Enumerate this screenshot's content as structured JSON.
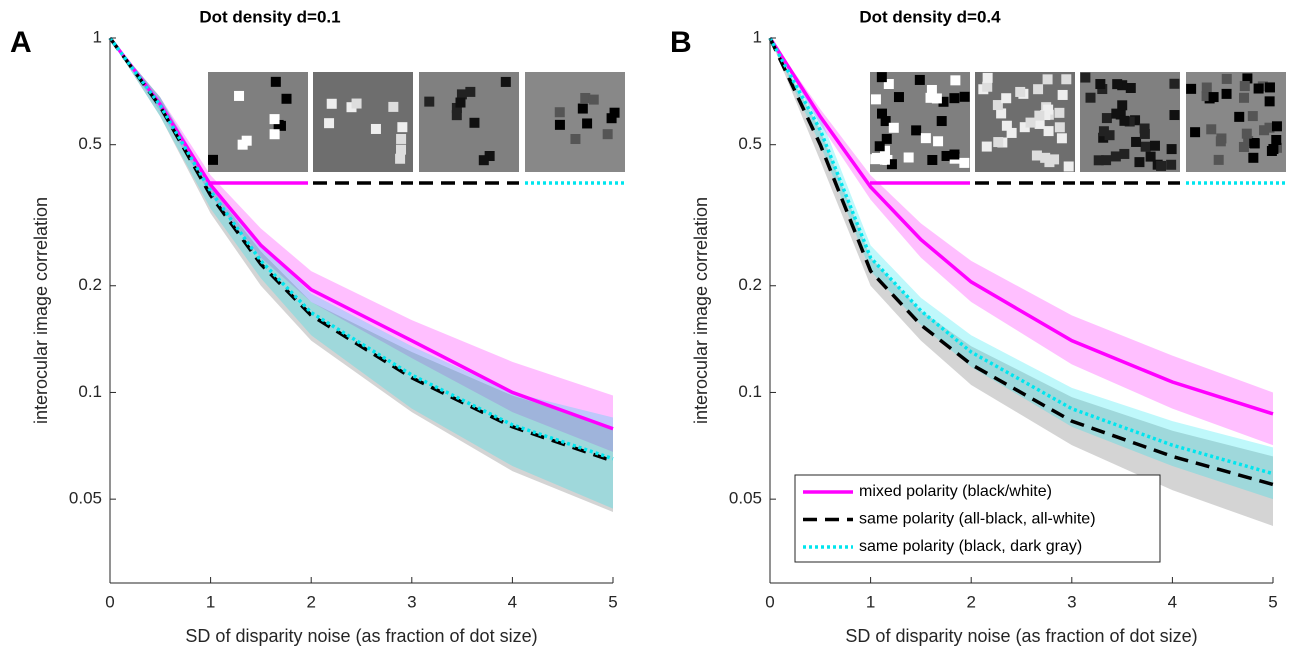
{
  "chart_data": [
    {
      "type": "line",
      "panel_label": "A",
      "title": "Dot density d=0.1",
      "x_label": "SD of disparity noise (as fraction of dot size)",
      "y_label": "interocular image correlation",
      "y_scale": "log",
      "xlim": [
        0,
        5
      ],
      "ylim": [
        0.029,
        1
      ],
      "xticks": [
        0,
        1,
        2,
        3,
        4,
        5
      ],
      "yticks": [
        0.05,
        0.1,
        0.2,
        0.5,
        1
      ],
      "x": [
        0,
        0.5,
        1,
        1.5,
        2,
        3,
        4,
        5
      ],
      "series": [
        {
          "color": "#ff00ff",
          "style": "solid",
          "values": [
            1,
            0.65,
            0.385,
            0.26,
            0.195,
            0.14,
            0.1,
            0.079
          ],
          "band_lower": [
            1,
            0.62,
            0.36,
            0.24,
            0.18,
            0.125,
            0.088,
            0.068
          ],
          "band_upper": [
            1,
            0.68,
            0.41,
            0.29,
            0.22,
            0.16,
            0.122,
            0.098
          ]
        },
        {
          "color": "#000000",
          "style": "dashed",
          "values": [
            1,
            0.64,
            0.36,
            0.23,
            0.165,
            0.11,
            0.08,
            0.064
          ],
          "band_lower": [
            1,
            0.6,
            0.32,
            0.2,
            0.14,
            0.088,
            0.06,
            0.046
          ],
          "band_upper": [
            1,
            0.68,
            0.38,
            0.25,
            0.18,
            0.13,
            0.098,
            0.08
          ]
        },
        {
          "color": "#00e5ee",
          "style": "dotted",
          "values": [
            1,
            0.645,
            0.37,
            0.235,
            0.168,
            0.112,
            0.081,
            0.065
          ],
          "band_lower": [
            1,
            0.6,
            0.33,
            0.21,
            0.145,
            0.09,
            0.062,
            0.047
          ],
          "band_upper": [
            1,
            0.68,
            0.39,
            0.26,
            0.19,
            0.135,
            0.1,
            0.085
          ]
        }
      ]
    },
    {
      "type": "line",
      "panel_label": "B",
      "title": "Dot density d=0.4",
      "x_label": "SD of disparity noise (as fraction of dot size)",
      "y_label": "interocular image correlation",
      "y_scale": "log",
      "xlim": [
        0,
        5
      ],
      "ylim": [
        0.029,
        1
      ],
      "xticks": [
        0,
        1,
        2,
        3,
        4,
        5
      ],
      "yticks": [
        0.05,
        0.1,
        0.2,
        0.5,
        1
      ],
      "x": [
        0,
        0.5,
        1,
        1.5,
        2,
        3,
        4,
        5
      ],
      "legend": "lower left",
      "series": [
        {
          "name": "mixed polarity (black/white)",
          "color": "#ff00ff",
          "style": "solid",
          "values": [
            1,
            0.6,
            0.38,
            0.27,
            0.205,
            0.14,
            0.107,
            0.087
          ],
          "band_lower": [
            1,
            0.57,
            0.35,
            0.24,
            0.18,
            0.12,
            0.09,
            0.071
          ],
          "band_upper": [
            1,
            0.63,
            0.41,
            0.3,
            0.235,
            0.165,
            0.127,
            0.1
          ]
        },
        {
          "name": "same polarity (all-black, all-white)",
          "color": "#000000",
          "style": "dashed",
          "values": [
            1,
            0.5,
            0.22,
            0.155,
            0.12,
            0.083,
            0.066,
            0.055
          ],
          "band_lower": [
            1,
            0.45,
            0.2,
            0.14,
            0.105,
            0.071,
            0.053,
            0.042
          ],
          "band_upper": [
            1,
            0.55,
            0.24,
            0.17,
            0.135,
            0.097,
            0.078,
            0.066
          ]
        },
        {
          "name": "same polarity (black, dark gray)",
          "color": "#00e5ee",
          "style": "dotted",
          "values": [
            1,
            0.55,
            0.24,
            0.17,
            0.13,
            0.09,
            0.071,
            0.059
          ],
          "band_lower": [
            1,
            0.5,
            0.22,
            0.155,
            0.118,
            0.08,
            0.062,
            0.05
          ],
          "band_upper": [
            1,
            0.6,
            0.26,
            0.185,
            0.145,
            0.103,
            0.083,
            0.07
          ]
        }
      ]
    }
  ]
}
